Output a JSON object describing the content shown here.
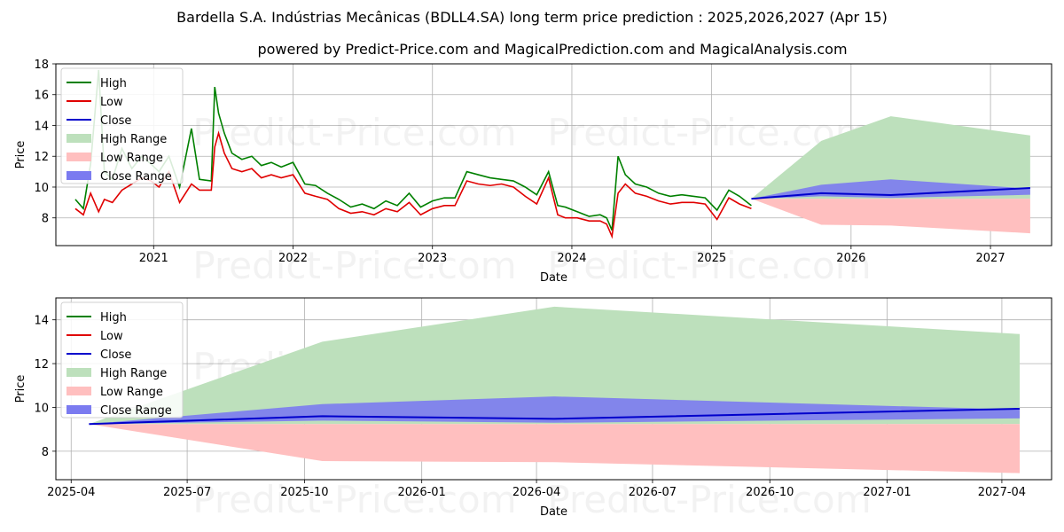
{
  "title": "Bardella S.A. Indústrias Mecânicas (BDLL4.SA) long term price prediction : 2025,2026,2027 (Apr 15)",
  "subtitle": "powered by Predict-Price.com and MagicalPrediction.com and MagicalAnalysis.com",
  "watermark": "Predict-Price.com",
  "colors": {
    "high": "#008000",
    "low": "#e00000",
    "close": "#0000cc",
    "high_range": "#bde0bc",
    "low_range": "#ffbfbf",
    "close_range": "#7b7bf0"
  },
  "legend": [
    "High",
    "Low",
    "Close",
    "High Range",
    "Low Range",
    "Close Range"
  ],
  "chart_data": [
    {
      "type": "line",
      "xlabel": "Date",
      "ylabel": "Price",
      "xlim": [
        "2020-04-20",
        "2027-06-10"
      ],
      "ylim": [
        6.2,
        18
      ],
      "yticks": [
        8,
        10,
        12,
        14,
        16,
        18
      ],
      "xticks": [
        "2021",
        "2022",
        "2023",
        "2024",
        "2025",
        "2026",
        "2027"
      ],
      "grid": true,
      "legend_position": "top-left",
      "history": {
        "dates": [
          "2020-06-10",
          "2020-07-01",
          "2020-07-20",
          "2020-08-10",
          "2020-08-25",
          "2020-09-15",
          "2020-10-10",
          "2020-11-05",
          "2020-12-01",
          "2020-12-25",
          "2021-01-15",
          "2021-02-10",
          "2021-03-10",
          "2021-04-10",
          "2021-05-01",
          "2021-06-01",
          "2021-06-10",
          "2021-06-20",
          "2021-07-05",
          "2021-07-25",
          "2021-08-20",
          "2021-09-15",
          "2021-10-10",
          "2021-11-05",
          "2021-12-01",
          "2022-01-01",
          "2022-02-01",
          "2022-03-01",
          "2022-04-01",
          "2022-05-01",
          "2022-06-01",
          "2022-07-01",
          "2022-08-01",
          "2022-09-01",
          "2022-10-01",
          "2022-11-01",
          "2022-12-01",
          "2023-01-01",
          "2023-02-01",
          "2023-03-01",
          "2023-04-01",
          "2023-05-01",
          "2023-06-01",
          "2023-07-01",
          "2023-08-01",
          "2023-09-01",
          "2023-10-01",
          "2023-11-01",
          "2023-11-25",
          "2023-12-15",
          "2024-01-15",
          "2024-02-15",
          "2024-03-15",
          "2024-04-01",
          "2024-04-15",
          "2024-05-01",
          "2024-05-20",
          "2024-06-15",
          "2024-07-15",
          "2024-08-15",
          "2024-09-15",
          "2024-10-15",
          "2024-11-15",
          "2024-12-15",
          "2025-01-15",
          "2025-02-15",
          "2025-03-15",
          "2025-04-15"
        ],
        "high": [
          9.2,
          8.6,
          11.5,
          17.6,
          11.0,
          10.5,
          12.5,
          11.2,
          12.0,
          11.5,
          11.0,
          12.0,
          10.0,
          13.8,
          10.5,
          10.4,
          16.5,
          14.8,
          13.5,
          12.2,
          11.8,
          12.0,
          11.4,
          11.6,
          11.3,
          11.6,
          10.2,
          10.1,
          9.6,
          9.2,
          8.7,
          8.9,
          8.6,
          9.1,
          8.8,
          9.6,
          8.7,
          9.1,
          9.3,
          9.3,
          11.0,
          10.8,
          10.6,
          10.5,
          10.4,
          10.0,
          9.5,
          11.0,
          8.8,
          8.7,
          8.4,
          8.1,
          8.2,
          8.0,
          7.2,
          12.0,
          10.8,
          10.2,
          10.0,
          9.6,
          9.4,
          9.5,
          9.4,
          9.3,
          8.5,
          9.8,
          9.4,
          8.8
        ],
        "low": [
          8.6,
          8.2,
          9.6,
          8.4,
          9.2,
          9.0,
          9.8,
          10.2,
          10.6,
          10.4,
          10.0,
          11.0,
          9.0,
          10.2,
          9.8,
          9.8,
          12.6,
          13.5,
          12.2,
          11.2,
          11.0,
          11.2,
          10.6,
          10.8,
          10.6,
          10.8,
          9.6,
          9.4,
          9.2,
          8.6,
          8.3,
          8.4,
          8.2,
          8.6,
          8.4,
          9.0,
          8.2,
          8.6,
          8.8,
          8.8,
          10.4,
          10.2,
          10.1,
          10.2,
          10.0,
          9.4,
          8.9,
          10.6,
          8.2,
          8.0,
          8.0,
          7.8,
          7.8,
          7.6,
          6.8,
          9.6,
          10.2,
          9.6,
          9.4,
          9.1,
          8.9,
          9.0,
          9.0,
          8.9,
          7.9,
          9.3,
          8.9,
          8.6
        ]
      },
      "forecast": {
        "dates": [
          "2025-04-15",
          "2025-10-15",
          "2026-04-15",
          "2027-04-15"
        ],
        "close": [
          9.24,
          9.6,
          9.48,
          9.94
        ],
        "high_range": [
          [
            9.24,
            9.24
          ],
          [
            9.24,
            13.0
          ],
          [
            9.24,
            14.6
          ],
          [
            9.24,
            13.35
          ]
        ],
        "low_range": [
          [
            9.24,
            9.24
          ],
          [
            7.55,
            9.24
          ],
          [
            7.5,
            9.24
          ],
          [
            7.0,
            9.24
          ]
        ],
        "close_range": [
          [
            9.24,
            9.24
          ],
          [
            9.4,
            10.15
          ],
          [
            9.3,
            10.5
          ],
          [
            9.5,
            9.9
          ]
        ]
      }
    },
    {
      "type": "line",
      "xlabel": "Date",
      "ylabel": "Price",
      "xlim": [
        "2025-03-20",
        "2027-05-10"
      ],
      "ylim": [
        6.7,
        15.0
      ],
      "yticks": [
        8,
        10,
        12,
        14
      ],
      "xticks": [
        "2025-04",
        "2025-07",
        "2025-10",
        "2026-01",
        "2026-04",
        "2026-07",
        "2026-10",
        "2027-01",
        "2027-04"
      ],
      "grid": true,
      "legend_position": "top-left",
      "forecast": {
        "dates": [
          "2025-04-15",
          "2025-10-15",
          "2026-04-15",
          "2027-04-15"
        ],
        "close": [
          9.24,
          9.6,
          9.48,
          9.94
        ],
        "high_range": [
          [
            9.24,
            9.24
          ],
          [
            9.24,
            13.0
          ],
          [
            9.24,
            14.6
          ],
          [
            9.24,
            13.35
          ]
        ],
        "low_range": [
          [
            9.24,
            9.24
          ],
          [
            7.55,
            9.24
          ],
          [
            7.5,
            9.24
          ],
          [
            7.0,
            9.24
          ]
        ],
        "close_range": [
          [
            9.24,
            9.24
          ],
          [
            9.4,
            10.15
          ],
          [
            9.3,
            10.5
          ],
          [
            9.5,
            9.9
          ]
        ]
      }
    }
  ]
}
